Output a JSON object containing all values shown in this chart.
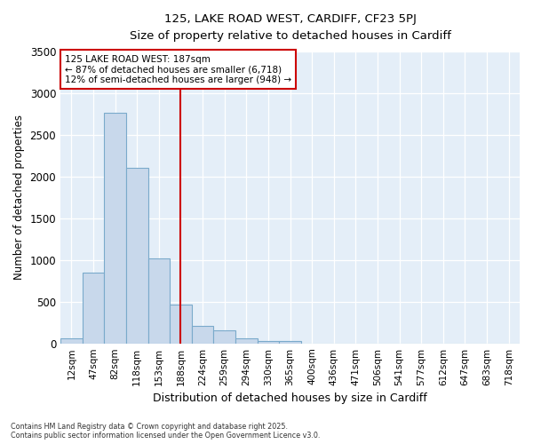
{
  "title1": "125, LAKE ROAD WEST, CARDIFF, CF23 5PJ",
  "title2": "Size of property relative to detached houses in Cardiff",
  "xlabel": "Distribution of detached houses by size in Cardiff",
  "ylabel": "Number of detached properties",
  "bar_color": "#c8d8eb",
  "bar_edge_color": "#7aaacb",
  "background_color": "#e4eef8",
  "grid_color": "#ffffff",
  "categories": [
    "12sqm",
    "47sqm",
    "82sqm",
    "118sqm",
    "153sqm",
    "188sqm",
    "224sqm",
    "259sqm",
    "294sqm",
    "330sqm",
    "365sqm",
    "400sqm",
    "436sqm",
    "471sqm",
    "506sqm",
    "541sqm",
    "577sqm",
    "612sqm",
    "647sqm",
    "683sqm",
    "718sqm"
  ],
  "values": [
    60,
    850,
    2760,
    2100,
    1020,
    460,
    210,
    155,
    60,
    25,
    25,
    0,
    0,
    0,
    0,
    0,
    0,
    0,
    0,
    0,
    0
  ],
  "property_bar_index": 5,
  "property_label": "125 LAKE ROAD WEST: 187sqm",
  "annotation_line1": "← 87% of detached houses are smaller (6,718)",
  "annotation_line2": "12% of semi-detached houses are larger (948) →",
  "ylim": [
    0,
    3500
  ],
  "yticks": [
    0,
    500,
    1000,
    1500,
    2000,
    2500,
    3000,
    3500
  ],
  "footer1": "Contains HM Land Registry data © Crown copyright and database right 2025.",
  "footer2": "Contains public sector information licensed under the Open Government Licence v3.0."
}
